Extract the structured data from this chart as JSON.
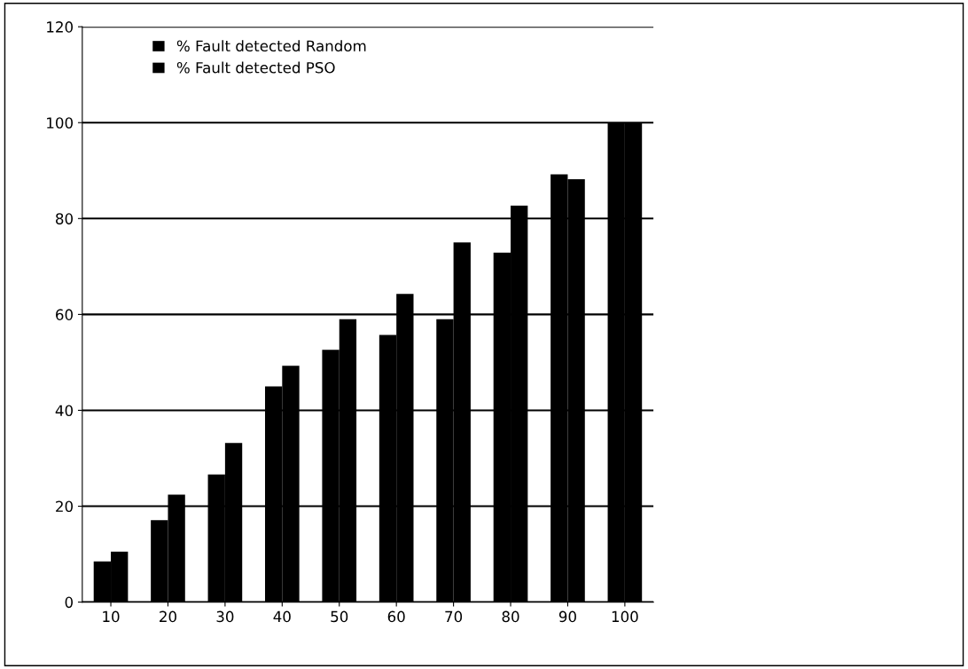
{
  "chart_data": {
    "type": "bar",
    "categories": [
      "10",
      "20",
      "30",
      "40",
      "50",
      "60",
      "70",
      "80",
      "90",
      "100"
    ],
    "series": [
      {
        "name": "% Fault detected Random",
        "color": "#000000",
        "values": [
          8.5,
          17.1,
          26.6,
          45,
          52.6,
          55.7,
          59,
          72.9,
          89.2,
          100
        ]
      },
      {
        "name": "% Fault detected PSO",
        "color": "#000000",
        "values": [
          10.5,
          22.4,
          33.2,
          49.3,
          59,
          64.3,
          75,
          82.7,
          88.2,
          100
        ]
      }
    ],
    "ylim": [
      0,
      120
    ],
    "yticks": [
      0,
      20,
      40,
      60,
      80,
      100,
      120
    ],
    "grid": "y",
    "legend": "top left"
  }
}
